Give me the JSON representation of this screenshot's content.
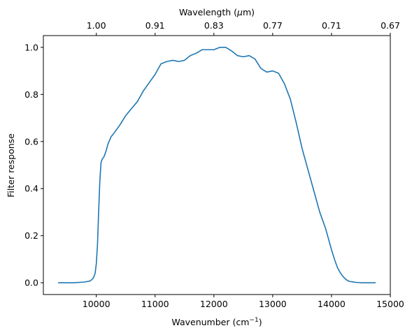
{
  "chart_data": {
    "type": "line",
    "title": "",
    "xlabel": "Wavenumber (cm",
    "xlabel_sup": "−1",
    "xlabel_suffix": ")",
    "ylabel": "Filter response",
    "top_xlabel": "Wavelength (",
    "top_xlabel_mu": "μ",
    "top_xlabel_suffix": "m)",
    "xlim": [
      9100,
      15000
    ],
    "ylim": [
      -0.05,
      1.05
    ],
    "grid": false,
    "x_ticks": [
      10000,
      11000,
      12000,
      13000,
      14000,
      15000
    ],
    "x_tick_labels": [
      "10000",
      "11000",
      "12000",
      "13000",
      "14000",
      "15000"
    ],
    "y_ticks": [
      0.0,
      0.2,
      0.4,
      0.6,
      0.8,
      1.0
    ],
    "y_tick_labels": [
      "0.0",
      "0.2",
      "0.4",
      "0.6",
      "0.8",
      "1.0"
    ],
    "top_ticks": [
      {
        "wavenumber": 10000,
        "label": "1.00"
      },
      {
        "wavenumber": 11000,
        "label": "0.91"
      },
      {
        "wavenumber": 12000,
        "label": "0.83"
      },
      {
        "wavenumber": 13000,
        "label": "0.77"
      },
      {
        "wavenumber": 14000,
        "label": "0.71"
      },
      {
        "wavenumber": 15000,
        "label": "0.67"
      }
    ],
    "series": [
      {
        "color": "#1f77b4",
        "x": [
          9350,
          9600,
          9800,
          9900,
          9950,
          9980,
          10000,
          10020,
          10040,
          10060,
          10080,
          10100,
          10130,
          10160,
          10200,
          10250,
          10300,
          10400,
          10500,
          10600,
          10700,
          10800,
          10900,
          11000,
          11100,
          11150,
          11200,
          11300,
          11400,
          11500,
          11600,
          11700,
          11800,
          11900,
          12000,
          12100,
          12200,
          12300,
          12400,
          12500,
          12600,
          12700,
          12800,
          12900,
          13000,
          13100,
          13200,
          13300,
          13400,
          13500,
          13600,
          13700,
          13800,
          13900,
          14000,
          14050,
          14100,
          14150,
          14200,
          14250,
          14300,
          14400,
          14500,
          14600,
          14750
        ],
        "y": [
          0.0,
          0.0,
          0.003,
          0.008,
          0.02,
          0.04,
          0.08,
          0.16,
          0.3,
          0.43,
          0.51,
          0.525,
          0.535,
          0.555,
          0.59,
          0.62,
          0.635,
          0.67,
          0.71,
          0.74,
          0.77,
          0.815,
          0.85,
          0.885,
          0.93,
          0.935,
          0.94,
          0.945,
          0.94,
          0.945,
          0.965,
          0.975,
          0.99,
          0.99,
          0.99,
          1.0,
          1.0,
          0.985,
          0.965,
          0.96,
          0.965,
          0.95,
          0.91,
          0.895,
          0.9,
          0.89,
          0.845,
          0.78,
          0.68,
          0.57,
          0.48,
          0.39,
          0.3,
          0.23,
          0.14,
          0.1,
          0.065,
          0.042,
          0.025,
          0.013,
          0.006,
          0.002,
          0.0,
          0.0,
          0.0
        ]
      }
    ]
  }
}
